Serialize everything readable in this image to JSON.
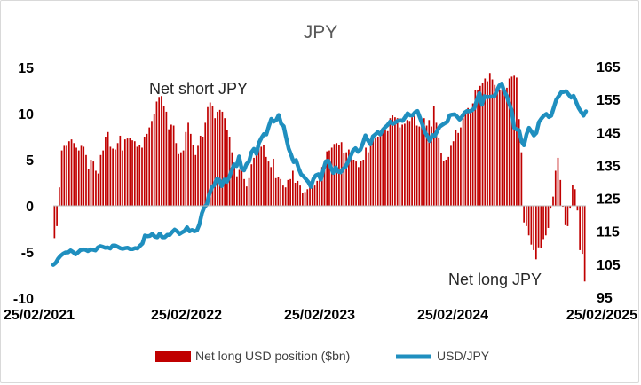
{
  "chart_data": {
    "type": "bar+line",
    "title": "JPY",
    "annotations": [
      "Net short JPY",
      "Net long JPY"
    ],
    "x_tick_labels": [
      "25/02/2021",
      "25/02/2022",
      "25/02/2023",
      "25/02/2024",
      "25/02/2025"
    ],
    "left_axis": {
      "range": [
        -10,
        15
      ],
      "ticks": [
        -10,
        -5,
        0,
        5,
        10,
        15
      ]
    },
    "right_axis": {
      "range": [
        95,
        165
      ],
      "ticks": [
        95,
        105,
        115,
        125,
        135,
        145,
        155,
        165
      ]
    },
    "grid": false,
    "legend_placement": "bottom",
    "colors": {
      "bars": "#c00000",
      "line": "#1f8fbf"
    },
    "series": [
      {
        "name": "Net long USD position ($bn)",
        "type": "bar",
        "axis": "left",
        "values": [
          -3.5,
          -2.2,
          2,
          6,
          6.5,
          6.5,
          7,
          7.2,
          6.8,
          6.3,
          6,
          6.5,
          6.4,
          5.5,
          4,
          5,
          4.8,
          3.8,
          3.5,
          5.5,
          6,
          7.5,
          8,
          6.4,
          6.2,
          6.1,
          6.8,
          7.6,
          6,
          7.2,
          7.3,
          7.4,
          7.1,
          7,
          6.4,
          6.6,
          6.3,
          7.5,
          7.8,
          8.5,
          9.2,
          10,
          11.3,
          11.8,
          11.9,
          10.8,
          10.2,
          8.3,
          8.8,
          8.7,
          6.8,
          5.6,
          5.8,
          6,
          8,
          9,
          7.8,
          6.6,
          5.5,
          6.5,
          7.6,
          7.5,
          9,
          10.7,
          11.2,
          10.8,
          9.5,
          10.2,
          10.4,
          10.2,
          9.5,
          8.2,
          7.5,
          5.8,
          4.5,
          3.2,
          3.9,
          3.8,
          2.9,
          2.1,
          3,
          4.5,
          5.2,
          6.1,
          6.3,
          6.4,
          6.6,
          5.3,
          4.8,
          4.2,
          5.1,
          3,
          3.1,
          2.9,
          2.2,
          2,
          2.8,
          2.9,
          3.8,
          2.5,
          2.7,
          2.2,
          1.4,
          1.5,
          1.8,
          2.5,
          2.8,
          2.2,
          2.7,
          3.4,
          4.2,
          4.8,
          5.9,
          6,
          6.3,
          6.7,
          6.8,
          6.6,
          6.9,
          5.7,
          5.8,
          6.1,
          5.5,
          5,
          4.8,
          4.2,
          4.9,
          5,
          6.3,
          5.8,
          6.8,
          7.3,
          7.3,
          7.5,
          7.7,
          8,
          8.2,
          8.1,
          9.5,
          9.8,
          9.6,
          9.5,
          8.5,
          8.8,
          8.9,
          9.3,
          9.2,
          9.6,
          9.7,
          8.7,
          8.6,
          8.9,
          9.5,
          8.7,
          9.3,
          8.6,
          10.8,
          9,
          7.4,
          5.7,
          4.9,
          5,
          5.3,
          6.5,
          7,
          8.2,
          7.9,
          8.5,
          9.5,
          10,
          10.6,
          10.2,
          11.1,
          12.5,
          12.6,
          13,
          13.3,
          13.8,
          13.5,
          14.4,
          13.7,
          13.1,
          12.8,
          12.6,
          12.5,
          12.3,
          12.8,
          13.8,
          14,
          14.1,
          13.9,
          9.4,
          5.8,
          -1.8,
          -2.2,
          -3.2,
          -4.2,
          -4.8,
          -5.8,
          -4.5,
          -4.6,
          -3.6,
          -3.2,
          -2.4,
          -0.3,
          1,
          3.8,
          5.2,
          2.8,
          -0.1,
          -2.1,
          -2.2,
          -0.3,
          2.3,
          1.8,
          -0.5,
          -4.8,
          -5.2,
          -8.2
        ]
      },
      {
        "name": "USD/JPY",
        "type": "line",
        "axis": "right",
        "values": [
          104.8,
          105.4,
          106.7,
          107.6,
          108.2,
          108.6,
          108.6,
          109.2,
          108.7,
          108,
          108.6,
          109.3,
          109.5,
          109.4,
          109,
          109.5,
          109.4,
          109.2,
          110.1,
          110.5,
          110.3,
          110,
          110.1,
          109.8,
          110.7,
          110.7,
          110.3,
          109.9,
          109.7,
          109.9,
          110,
          109.6,
          109.6,
          109.9,
          109.8,
          110.6,
          111.3,
          113.7,
          113.5,
          113.6,
          114.2,
          113.4,
          113.2,
          114.3,
          113.2,
          113.2,
          113.9,
          113.9,
          114.8,
          115.5,
          115,
          114.2,
          114.7,
          115.1,
          116.2,
          115,
          115.4,
          115,
          115.3,
          117.1,
          120.5,
          122.4,
          123.1,
          126.3,
          128.3,
          129,
          130.9,
          130.6,
          128.7,
          130.7,
          130,
          131.4,
          133.4,
          135.3,
          134.8,
          137.7,
          134.1,
          133.5,
          135.4,
          136.1,
          139,
          140,
          138.5,
          141.8,
          143.3,
          144.5,
          144.4,
          146.9,
          149.1,
          148.3,
          148.8,
          150.3,
          147.6,
          146.9,
          143.4,
          140.1,
          138.2,
          136,
          136.6,
          134.2,
          132.3,
          131.7,
          130.8,
          129.9,
          128.5,
          130.9,
          132,
          132.3,
          130.7,
          133.7,
          136.2,
          136.4,
          134.5,
          132.7,
          134.4,
          133.1,
          132.9,
          134,
          134.6,
          136.1,
          137.8,
          139.5,
          140.2,
          139.1,
          139.8,
          141.8,
          144.1,
          142.6,
          141.4,
          143.8,
          144.4,
          145.1,
          144.4,
          145.8,
          146.6,
          147.3,
          148.3,
          147.6,
          148,
          148.5,
          148.7,
          148.5,
          149.6,
          150.8,
          150.2,
          150.2,
          151.1,
          151.5,
          149.5,
          147.4,
          145.1,
          143.9,
          142.4,
          144.2,
          143.9,
          145.5,
          146.8,
          147.3,
          147.8,
          148.2,
          150.2,
          150.4,
          150.5,
          149.8,
          148.9,
          149.8,
          151,
          151.5,
          151.4,
          151.7,
          152.4,
          154.9,
          156.9,
          153.4,
          156,
          155.7,
          155.8,
          155.9,
          155.9,
          157.6,
          159.2,
          159.8,
          157.4,
          156.1,
          153.8,
          151.8,
          146.5,
          145.9,
          145.7,
          142.3,
          141.1,
          144.4,
          146.4,
          145.3,
          144.1,
          144.9,
          148.1,
          149.2,
          150.1,
          150.6,
          149.7,
          150.1,
          152.5,
          154.9,
          156,
          157.2,
          157.3,
          157.5,
          156.5,
          155.6,
          156.1,
          154.3,
          152.5,
          151.3,
          150.1,
          151.4
        ]
      }
    ]
  }
}
